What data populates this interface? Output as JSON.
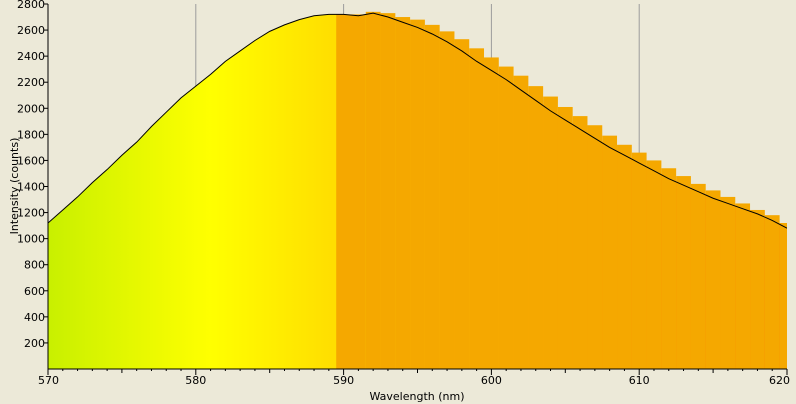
{
  "chart_data": {
    "type": "area",
    "title": "",
    "xlabel": "Wavelength (nm)",
    "ylabel": "Intensity (counts)",
    "xlim": [
      570,
      620
    ],
    "ylim": [
      0,
      2800
    ],
    "x_ticks": [
      570,
      580,
      590,
      600,
      610,
      620
    ],
    "y_ticks": [
      200,
      400,
      600,
      800,
      1000,
      1200,
      1400,
      1600,
      1800,
      2000,
      2200,
      2400,
      2600,
      2800
    ],
    "grid": true,
    "colors": {
      "background": "#ece9d8",
      "gradient_start": "#c8f000",
      "gradient_peak": "#ffff00",
      "gradient_end": "#ff6400",
      "bar_overlay": "#f5a800",
      "line": "#000000",
      "grid": "#9c9c9c"
    },
    "series": [
      {
        "type": "line",
        "x": [
          570,
          571,
          572,
          573,
          574,
          575,
          576,
          577,
          578,
          579,
          580,
          581,
          582,
          583,
          584,
          585,
          586,
          587,
          588,
          589,
          590,
          591,
          592,
          593,
          594,
          595,
          596,
          597,
          598,
          599,
          600,
          601,
          602,
          603,
          604,
          605,
          606,
          607,
          608,
          609,
          610,
          611,
          612,
          613,
          614,
          615,
          616,
          617,
          618,
          619,
          620
        ],
        "values": [
          1120,
          1220,
          1320,
          1430,
          1530,
          1640,
          1740,
          1860,
          1970,
          2080,
          2170,
          2260,
          2360,
          2440,
          2520,
          2590,
          2640,
          2680,
          2710,
          2720,
          2720,
          2710,
          2730,
          2700,
          2660,
          2620,
          2570,
          2510,
          2440,
          2360,
          2290,
          2220,
          2140,
          2060,
          1980,
          1910,
          1840,
          1770,
          1700,
          1640,
          1580,
          1520,
          1460,
          1410,
          1360,
          1310,
          1270,
          1230,
          1190,
          1140,
          1080
        ]
      },
      {
        "type": "bar_overlay",
        "x": [
          590,
          591,
          592,
          593,
          594,
          595,
          596,
          597,
          598,
          599,
          600,
          601,
          602,
          603,
          604,
          605,
          606,
          607,
          608,
          609,
          610,
          611,
          612,
          613,
          614,
          615,
          616,
          617,
          618,
          619,
          620
        ],
        "values": [
          2720,
          2720,
          2740,
          2730,
          2700,
          2680,
          2640,
          2590,
          2530,
          2460,
          2390,
          2320,
          2250,
          2170,
          2090,
          2010,
          1940,
          1870,
          1790,
          1720,
          1660,
          1600,
          1540,
          1480,
          1420,
          1370,
          1320,
          1270,
          1220,
          1180,
          1120
        ]
      }
    ]
  }
}
